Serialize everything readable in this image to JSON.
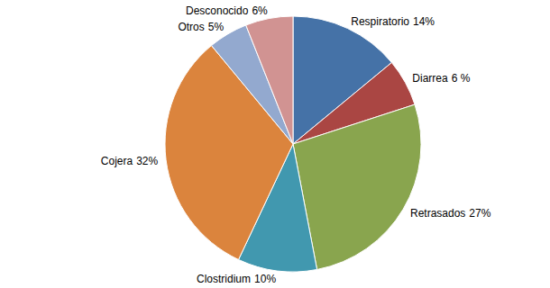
{
  "chart_data": {
    "type": "pie",
    "categories": [
      "Respiratorio",
      "Diarrea",
      "Retrasados",
      "Clostridium",
      "Cojera",
      "Otros",
      "Desconocido"
    ],
    "values": [
      14,
      6,
      27,
      10,
      32,
      5,
      6
    ],
    "value_labels": [
      "14%",
      "6 %",
      "27%",
      "10%",
      "32%",
      "5%",
      "6%"
    ],
    "colors": [
      "#4572a7",
      "#aa4643",
      "#89a54e",
      "#4198af",
      "#db843d",
      "#93a9cf",
      "#d19392"
    ],
    "data_labels": true
  }
}
